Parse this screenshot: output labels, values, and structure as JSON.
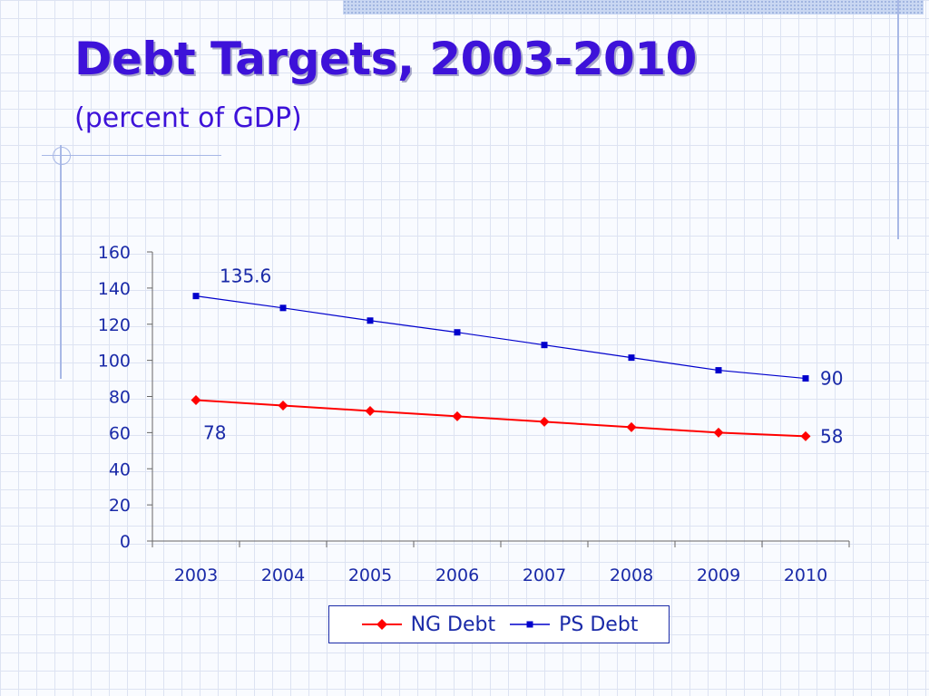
{
  "slide": {
    "title": "Debt Targets, 2003-2010",
    "subtitle": "(percent of GDP)"
  },
  "colors": {
    "title": "#3d12d9",
    "axis_text": "#1a2aa8",
    "ng_series": "#ff0000",
    "ps_series": "#0000cc"
  },
  "chart_data": {
    "type": "line",
    "title": "",
    "xlabel": "",
    "ylabel": "",
    "ylim": [
      0,
      160
    ],
    "yticks": [
      "0",
      "20",
      "40",
      "60",
      "80",
      "100",
      "120",
      "140",
      "160"
    ],
    "categories": [
      "2003",
      "2004",
      "2005",
      "2006",
      "2007",
      "2008",
      "2009",
      "2010"
    ],
    "series": [
      {
        "name": "NG Debt",
        "marker": "diamond",
        "color": "#ff0000",
        "values": [
          78,
          75,
          72,
          69,
          66,
          63,
          60,
          58
        ]
      },
      {
        "name": "PS Debt",
        "marker": "square",
        "color": "#0000cc",
        "values": [
          135.6,
          129,
          122,
          115.5,
          108.5,
          101.5,
          94.5,
          90
        ]
      }
    ],
    "annotations": [
      {
        "series": "PS Debt",
        "index": 0,
        "text": "135.6",
        "position": "above-right"
      },
      {
        "series": "PS Debt",
        "index": 7,
        "text": "90",
        "position": "right"
      },
      {
        "series": "NG Debt",
        "index": 0,
        "text": "78",
        "position": "below-right"
      },
      {
        "series": "NG Debt",
        "index": 7,
        "text": "58",
        "position": "right"
      }
    ],
    "legend": {
      "placement": "bottom"
    },
    "grid": false
  }
}
